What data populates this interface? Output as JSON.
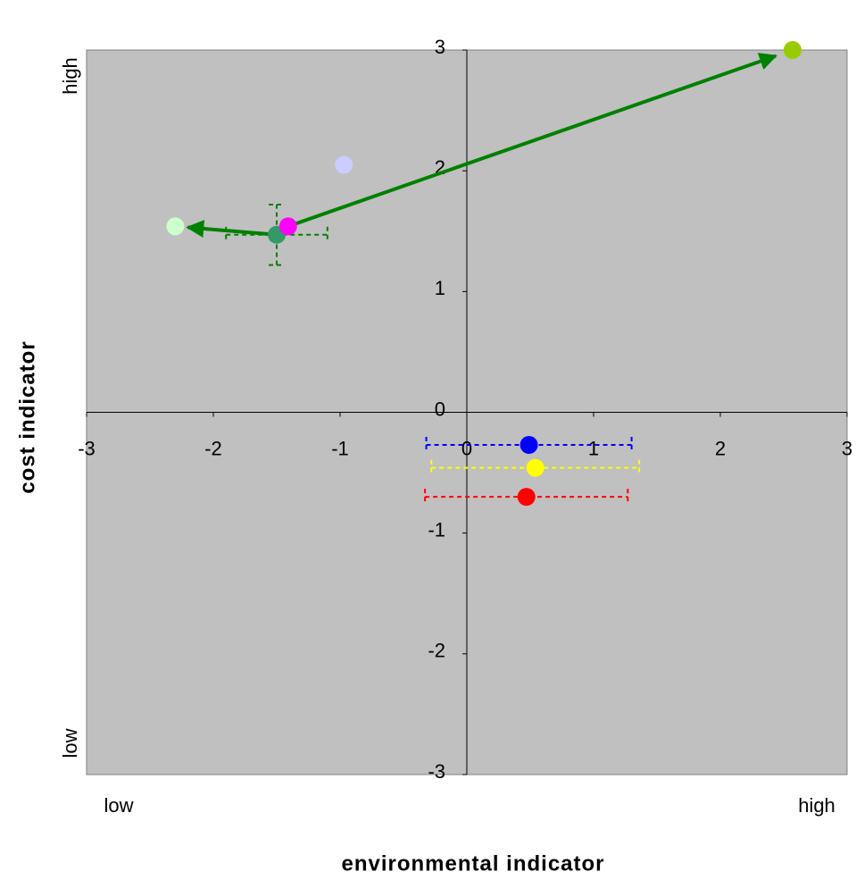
{
  "chart_data": {
    "type": "scatter",
    "x_label": "environmental indicator",
    "y_label": "cost indicator",
    "x_low_label": "low",
    "x_high_label": "high",
    "y_low_label": "low",
    "y_high_label": "high",
    "xlim": [
      -3,
      3
    ],
    "ylim": [
      -3,
      3
    ],
    "xticks": [
      -3,
      -2,
      -1,
      0,
      1,
      2,
      3
    ],
    "yticks": [
      -3,
      -2,
      -1,
      0,
      1,
      2,
      3
    ],
    "background": "#c0c0c0",
    "points": [
      {
        "x": -2.3,
        "y": 1.54,
        "color": "#ccffcc"
      },
      {
        "x": -1.5,
        "y": 1.47,
        "color": "#339966",
        "xerr": 0.4,
        "yerr": 0.25,
        "err_color": "#008000"
      },
      {
        "x": -1.41,
        "y": 1.54,
        "color": "#ff00ff"
      },
      {
        "x": -0.97,
        "y": 2.05,
        "color": "#ccccff"
      },
      {
        "x": 2.57,
        "y": 3.0,
        "color": "#99cc00"
      },
      {
        "x": 0.49,
        "y": -0.27,
        "color": "#0000ff",
        "xerr": 0.81,
        "err_color": "#0000ff"
      },
      {
        "x": 0.54,
        "y": -0.46,
        "color": "#ffff00",
        "xerr": 0.82,
        "err_color": "#ffff00"
      },
      {
        "x": 0.47,
        "y": -0.7,
        "color": "#ff0000",
        "xerr": 0.8,
        "err_color": "#ff0000"
      }
    ]
  }
}
